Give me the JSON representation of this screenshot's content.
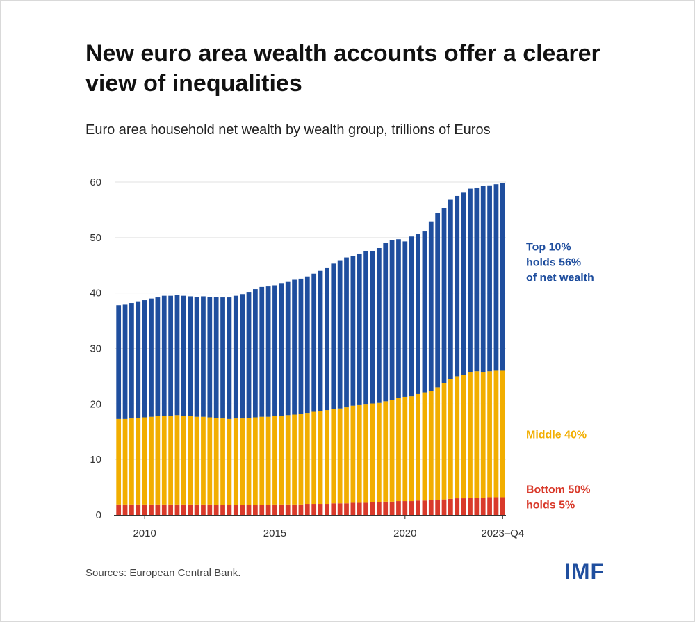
{
  "header": {
    "title": "New euro area wealth accounts offer a clearer view of inequalities",
    "subtitle": "Euro area household net wealth by wealth group, trillions of Euros"
  },
  "footer": {
    "source": "Sources: European Central Bank.",
    "logo": "IMF"
  },
  "colors": {
    "bottom": "#d93a2b",
    "middle": "#f2ae00",
    "top": "#1f4e9e",
    "grid": "#e2e2e2"
  },
  "chart_data": {
    "type": "bar",
    "stacked": true,
    "x_label": "",
    "y_label": "",
    "ylim": [
      0,
      60
    ],
    "yticks": [
      0,
      10,
      20,
      30,
      40,
      50,
      60
    ],
    "xticks": [
      {
        "label": "2010",
        "index": 4
      },
      {
        "label": "2015",
        "index": 24
      },
      {
        "label": "2020",
        "index": 44
      },
      {
        "label": "2023–Q4",
        "index": 59
      }
    ],
    "grid": "horizontal",
    "legend": "direct labels at right",
    "x": [
      "2009-Q1",
      "2009-Q2",
      "2009-Q3",
      "2009-Q4",
      "2010-Q1",
      "2010-Q2",
      "2010-Q3",
      "2010-Q4",
      "2011-Q1",
      "2011-Q2",
      "2011-Q3",
      "2011-Q4",
      "2012-Q1",
      "2012-Q2",
      "2012-Q3",
      "2012-Q4",
      "2013-Q1",
      "2013-Q2",
      "2013-Q3",
      "2013-Q4",
      "2014-Q1",
      "2014-Q2",
      "2014-Q3",
      "2014-Q4",
      "2015-Q1",
      "2015-Q2",
      "2015-Q3",
      "2015-Q4",
      "2016-Q1",
      "2016-Q2",
      "2016-Q3",
      "2016-Q4",
      "2017-Q1",
      "2017-Q2",
      "2017-Q3",
      "2017-Q4",
      "2018-Q1",
      "2018-Q2",
      "2018-Q3",
      "2018-Q4",
      "2019-Q1",
      "2019-Q2",
      "2019-Q3",
      "2019-Q4",
      "2020-Q1",
      "2020-Q2",
      "2020-Q3",
      "2020-Q4",
      "2021-Q1",
      "2021-Q2",
      "2021-Q3",
      "2021-Q4",
      "2022-Q1",
      "2022-Q2",
      "2022-Q3",
      "2022-Q4",
      "2023-Q1",
      "2023-Q2",
      "2023-Q3",
      "2023-Q4"
    ],
    "series": [
      {
        "name": "Bottom 50%",
        "label_lines": [
          "Bottom 50%",
          "holds 5%"
        ],
        "color_key": "bottom",
        "values": [
          1.9,
          1.9,
          1.9,
          1.9,
          1.9,
          1.9,
          1.9,
          1.9,
          1.9,
          1.9,
          1.9,
          1.9,
          1.9,
          1.9,
          1.9,
          1.8,
          1.8,
          1.8,
          1.8,
          1.8,
          1.8,
          1.8,
          1.8,
          1.8,
          1.9,
          1.9,
          1.9,
          1.9,
          1.9,
          2.0,
          2.0,
          2.0,
          2.0,
          2.1,
          2.1,
          2.1,
          2.2,
          2.2,
          2.2,
          2.3,
          2.3,
          2.4,
          2.4,
          2.5,
          2.5,
          2.5,
          2.6,
          2.6,
          2.7,
          2.7,
          2.8,
          2.9,
          3.0,
          3.0,
          3.1,
          3.1,
          3.1,
          3.2,
          3.2,
          3.2
        ]
      },
      {
        "name": "Middle 40%",
        "label_lines": [
          "Middle 40%"
        ],
        "color_key": "middle",
        "values": [
          15.4,
          15.4,
          15.5,
          15.6,
          15.7,
          15.8,
          15.9,
          16.0,
          16.0,
          16.1,
          16.0,
          15.9,
          15.8,
          15.8,
          15.7,
          15.7,
          15.6,
          15.5,
          15.6,
          15.6,
          15.7,
          15.8,
          15.9,
          15.9,
          15.9,
          16.0,
          16.1,
          16.2,
          16.3,
          16.4,
          16.6,
          16.7,
          16.9,
          17.0,
          17.1,
          17.3,
          17.5,
          17.6,
          17.7,
          17.8,
          17.9,
          18.1,
          18.3,
          18.6,
          18.8,
          18.9,
          19.2,
          19.5,
          19.7,
          20.3,
          21.0,
          21.6,
          22.0,
          22.3,
          22.7,
          22.8,
          22.7,
          22.7,
          22.8,
          22.8
        ]
      },
      {
        "name": "Top 10%",
        "label_lines": [
          "Top 10%",
          "holds 56%",
          "of net wealth"
        ],
        "color_key": "top",
        "values": [
          20.5,
          20.6,
          20.8,
          21.0,
          21.1,
          21.3,
          21.4,
          21.6,
          21.6,
          21.6,
          21.6,
          21.6,
          21.6,
          21.7,
          21.7,
          21.8,
          21.8,
          21.9,
          22.1,
          22.4,
          22.7,
          23.1,
          23.4,
          23.5,
          23.6,
          23.9,
          24.0,
          24.3,
          24.4,
          24.6,
          24.9,
          25.3,
          25.7,
          26.2,
          26.7,
          27.0,
          27.0,
          27.3,
          27.7,
          27.5,
          27.9,
          28.5,
          28.8,
          28.6,
          28.0,
          28.8,
          28.9,
          29.0,
          30.5,
          31.4,
          31.5,
          32.3,
          32.5,
          32.9,
          33.0,
          33.1,
          33.5,
          33.5,
          33.6,
          33.8
        ]
      }
    ]
  }
}
